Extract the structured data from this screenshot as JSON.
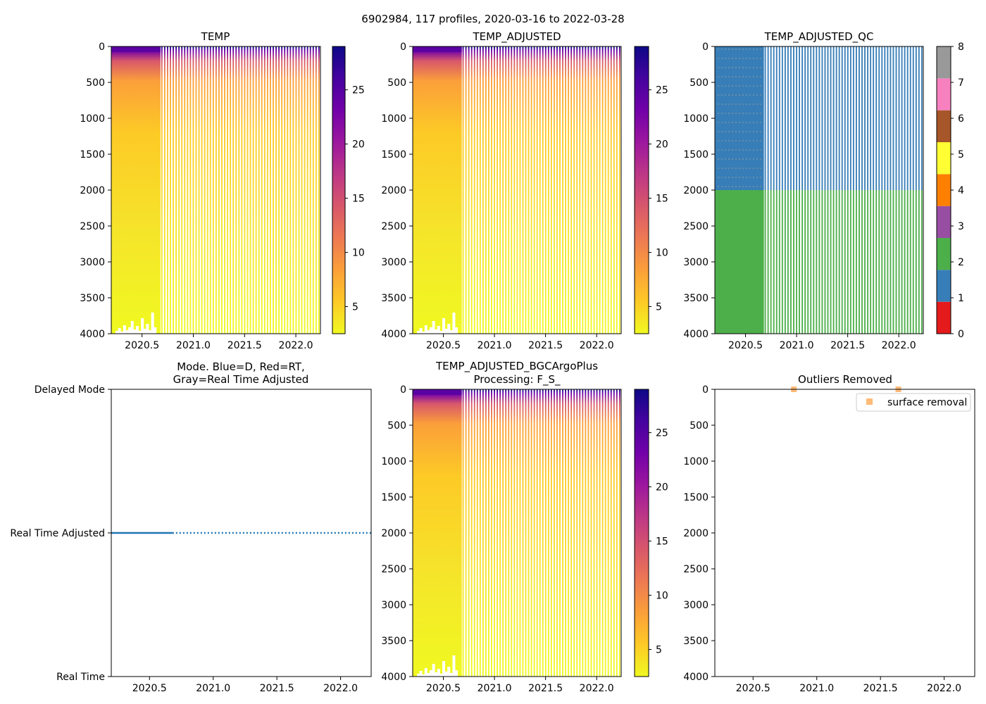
{
  "suptitle": "6902984, 117 profiles, 2020-03-16 to 2022-03-28",
  "colors": {
    "plasma": [
      "#f0f921",
      "#fdca26",
      "#fb9f3a",
      "#ed7953",
      "#d8576b",
      "#bd3786",
      "#9c179e",
      "#7201a8",
      "#46039f",
      "#0d0887"
    ],
    "qc": [
      "#e41a1c",
      "#377eb8",
      "#4daf4a",
      "#984ea3",
      "#ff7f00",
      "#ffff33",
      "#a65628",
      "#f781bf",
      "#999999"
    ],
    "mode_line": "#1f77b4",
    "outlier_marker": "#ffbb78"
  },
  "chart_data": [
    {
      "id": "temp",
      "type": "heatmap",
      "title": "TEMP",
      "xlim": [
        2020.2,
        2022.24
      ],
      "ylim": [
        4000,
        0
      ],
      "xticks": [
        2020.5,
        2021.0,
        2021.5,
        2022.0
      ],
      "xtick_labels": [
        "2020.5",
        "2021.0",
        "2021.5",
        "2022.0"
      ],
      "yticks": [
        0,
        500,
        1000,
        1500,
        2000,
        2500,
        3000,
        3500,
        4000
      ],
      "ytick_labels": [
        "0",
        "500",
        "1000",
        "1500",
        "2000",
        "2500",
        "3000",
        "3500",
        "4000"
      ],
      "dense_until": 2020.68,
      "colorbar": {
        "vmin": 2.5,
        "vmax": 29,
        "ticks": [
          5,
          10,
          15,
          20,
          25
        ],
        "tick_labels": [
          "5",
          "10",
          "15",
          "20",
          "25"
        ]
      }
    },
    {
      "id": "temp_adjusted",
      "type": "heatmap",
      "title": "TEMP_ADJUSTED",
      "xlim": [
        2020.2,
        2022.24
      ],
      "ylim": [
        4000,
        0
      ],
      "xticks": [
        2020.5,
        2021.0,
        2021.5,
        2022.0
      ],
      "xtick_labels": [
        "2020.5",
        "2021.0",
        "2021.5",
        "2022.0"
      ],
      "yticks": [
        0,
        500,
        1000,
        1500,
        2000,
        2500,
        3000,
        3500,
        4000
      ],
      "ytick_labels": [
        "0",
        "500",
        "1000",
        "1500",
        "2000",
        "2500",
        "3000",
        "3500",
        "4000"
      ],
      "dense_until": 2020.68,
      "colorbar": {
        "vmin": 2.5,
        "vmax": 29,
        "ticks": [
          5,
          10,
          15,
          20,
          25
        ],
        "tick_labels": [
          "5",
          "10",
          "15",
          "20",
          "25"
        ]
      }
    },
    {
      "id": "temp_adjusted_qc",
      "type": "heatmap",
      "title": "TEMP_ADJUSTED_QC",
      "xlim": [
        2020.2,
        2022.24
      ],
      "ylim": [
        4000,
        0
      ],
      "xticks": [
        2020.5,
        2021.0,
        2021.5,
        2022.0
      ],
      "xtick_labels": [
        "2020.5",
        "2021.0",
        "2021.5",
        "2022.0"
      ],
      "yticks": [
        0,
        500,
        1000,
        1500,
        2000,
        2500,
        3000,
        3500,
        4000
      ],
      "ytick_labels": [
        "0",
        "500",
        "1000",
        "1500",
        "2000",
        "2500",
        "3000",
        "3500",
        "4000"
      ],
      "dense_until": 2020.68,
      "qc_split_depth": 2000,
      "qc_upper_flag": 1,
      "qc_lower_flag": 2,
      "colorbar": {
        "vmin": 0,
        "vmax": 8,
        "ticks": [
          0,
          1,
          2,
          3,
          4,
          5,
          6,
          7,
          8
        ],
        "tick_labels": [
          "0",
          "1",
          "2",
          "3",
          "4",
          "5",
          "6",
          "7",
          "8"
        ]
      }
    },
    {
      "id": "mode",
      "type": "line",
      "title_line1": "Mode. Blue=D, Red=RT,",
      "title_line2": "Gray=Real Time Adjusted",
      "xlim": [
        2020.2,
        2022.24
      ],
      "xticks": [
        2020.5,
        2021.0,
        2021.5,
        2022.0
      ],
      "xtick_labels": [
        "2020.5",
        "2021.0",
        "2021.5",
        "2022.0"
      ],
      "yticks": [
        2,
        1,
        0
      ],
      "ytick_labels": [
        "Delayed Mode",
        "Real Time Adjusted",
        "Real Time"
      ],
      "series": [
        {
          "name": "mode",
          "y": 1,
          "x_start": 2020.2,
          "x_end": 2022.24,
          "dense_until": 2020.68
        }
      ]
    },
    {
      "id": "bgcargoplus",
      "type": "heatmap",
      "title_line1": "TEMP_ADJUSTED_BGCArgoPlus",
      "title_line2": "Processing: F_S_",
      "xlim": [
        2020.2,
        2022.24
      ],
      "ylim": [
        4000,
        0
      ],
      "xticks": [
        2020.5,
        2021.0,
        2021.5,
        2022.0
      ],
      "xtick_labels": [
        "2020.5",
        "2021.0",
        "2021.5",
        "2022.0"
      ],
      "yticks": [
        0,
        500,
        1000,
        1500,
        2000,
        2500,
        3000,
        3500,
        4000
      ],
      "ytick_labels": [
        "0",
        "500",
        "1000",
        "1500",
        "2000",
        "2500",
        "3000",
        "3500",
        "4000"
      ],
      "dense_until": 2020.68,
      "colorbar": {
        "vmin": 2.5,
        "vmax": 29,
        "ticks": [
          5,
          10,
          15,
          20,
          25
        ],
        "tick_labels": [
          "5",
          "10",
          "15",
          "20",
          "25"
        ]
      }
    },
    {
      "id": "outliers",
      "type": "scatter",
      "title": "Outliers Removed",
      "xlim": [
        2020.2,
        2022.24
      ],
      "ylim": [
        4000,
        0
      ],
      "xticks": [
        2020.5,
        2021.0,
        2021.5,
        2022.0
      ],
      "xtick_labels": [
        "2020.5",
        "2021.0",
        "2021.5",
        "2022.0"
      ],
      "yticks": [
        0,
        500,
        1000,
        1500,
        2000,
        2500,
        3000,
        3500,
        4000
      ],
      "ytick_labels": [
        "0",
        "500",
        "1000",
        "1500",
        "2000",
        "2500",
        "3000",
        "3500",
        "4000"
      ],
      "legend": {
        "label": "surface removal",
        "position": "upper right"
      },
      "points": [
        {
          "x": 2020.82,
          "y": 0
        },
        {
          "x": 2021.64,
          "y": 0
        }
      ]
    }
  ]
}
